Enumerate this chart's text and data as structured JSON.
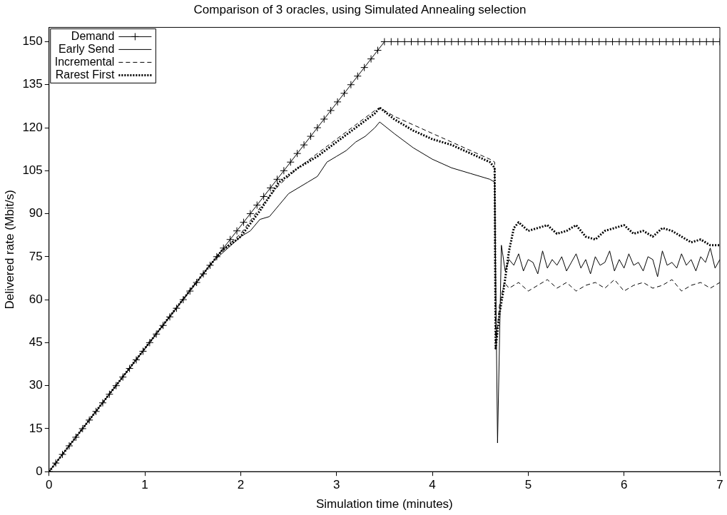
{
  "chart_data": {
    "type": "line",
    "title": "Comparison of 3 oracles, using Simulated Annealing selection",
    "xlabel": "Simulation time (minutes)",
    "ylabel": "Delivered rate (Mbit/s)",
    "xlim": [
      0,
      7
    ],
    "xticks": [
      0,
      1,
      2,
      3,
      4,
      5,
      6,
      7
    ],
    "ylim": [
      0,
      155
    ],
    "yticks": [
      0,
      15,
      30,
      45,
      60,
      75,
      90,
      105,
      120,
      135,
      150
    ],
    "grid": false,
    "legend": "top left",
    "series": [
      {
        "name": "Demand",
        "color": "#000000",
        "marker": "cross",
        "line_style": "solid",
        "x": [
          0,
          0.07,
          0.14,
          0.21,
          0.28,
          0.35,
          0.42,
          0.49,
          0.56,
          0.63,
          0.7,
          0.77,
          0.84,
          0.91,
          0.98,
          1.05,
          1.12,
          1.19,
          1.26,
          1.33,
          1.4,
          1.47,
          1.54,
          1.61,
          1.68,
          1.75,
          1.82,
          1.89,
          1.96,
          2.03,
          2.1,
          2.17,
          2.24,
          2.31,
          2.38,
          2.45,
          2.52,
          2.59,
          2.66,
          2.73,
          2.8,
          2.87,
          2.94,
          3.01,
          3.08,
          3.15,
          3.22,
          3.29,
          3.36,
          3.43,
          3.5,
          3.57,
          3.64,
          3.71,
          3.78,
          3.85,
          3.92,
          3.99,
          4.06,
          4.13,
          4.2,
          4.27,
          4.34,
          4.41,
          4.48,
          4.55,
          4.62,
          4.69,
          4.76,
          4.83,
          4.9,
          4.97,
          5.04,
          5.11,
          5.18,
          5.25,
          5.32,
          5.39,
          5.46,
          5.53,
          5.6,
          5.67,
          5.74,
          5.81,
          5.88,
          5.95,
          6.02,
          6.09,
          6.16,
          6.23,
          6.3,
          6.37,
          6.44,
          6.51,
          6.58,
          6.65,
          6.72,
          6.79,
          6.86,
          6.93,
          7.0
        ],
        "values": [
          0,
          3,
          6,
          9,
          12,
          15,
          18,
          21,
          24,
          27,
          30,
          33,
          36,
          39,
          42,
          45,
          48,
          51,
          54,
          57,
          60,
          63,
          66,
          69,
          72,
          75,
          78,
          81,
          84,
          87,
          90,
          93,
          96,
          99,
          102,
          105,
          108,
          111,
          114,
          117,
          120,
          123,
          126,
          129,
          132,
          135,
          138,
          141,
          144,
          147,
          150,
          150,
          150,
          150,
          150,
          150,
          150,
          150,
          150,
          150,
          150,
          150,
          150,
          150,
          150,
          150,
          150,
          150,
          150,
          150,
          150,
          150,
          150,
          150,
          150,
          150,
          150,
          150,
          150,
          150,
          150,
          150,
          150,
          150,
          150,
          150,
          150,
          150,
          150,
          150,
          150,
          150,
          150,
          150,
          150,
          150,
          150,
          150,
          150,
          150,
          150
        ]
      },
      {
        "name": "Early Send",
        "color": "#000000",
        "marker": "none",
        "line_style": "solid",
        "x": [
          0,
          0.5,
          1,
          1.5,
          1.7,
          1.9,
          2.0,
          2.1,
          2.2,
          2.3,
          2.4,
          2.5,
          2.6,
          2.7,
          2.8,
          2.9,
          3.0,
          3.1,
          3.2,
          3.3,
          3.4,
          3.45,
          3.6,
          3.8,
          4.0,
          4.2,
          4.4,
          4.6,
          4.65,
          4.68,
          4.72,
          4.76,
          4.8,
          4.85,
          4.9,
          4.95,
          5.0,
          5.05,
          5.1,
          5.15,
          5.2,
          5.25,
          5.3,
          5.35,
          5.4,
          5.45,
          5.5,
          5.55,
          5.6,
          5.65,
          5.7,
          5.75,
          5.8,
          5.85,
          5.9,
          5.95,
          6.0,
          6.05,
          6.1,
          6.15,
          6.2,
          6.25,
          6.3,
          6.35,
          6.4,
          6.45,
          6.5,
          6.55,
          6.6,
          6.65,
          6.7,
          6.75,
          6.8,
          6.85,
          6.9,
          6.95,
          7.0
        ],
        "values": [
          0,
          21.5,
          43,
          64.5,
          73,
          79,
          82,
          84,
          88,
          89,
          93,
          97,
          99,
          101,
          103,
          108,
          110,
          112,
          115,
          117,
          120,
          122,
          118,
          113,
          109,
          106,
          104,
          102,
          101,
          10,
          79,
          70,
          74,
          72,
          76,
          70,
          74,
          73,
          69,
          77,
          71,
          74,
          72,
          75,
          70,
          73,
          76,
          71,
          74,
          69,
          75,
          72,
          73,
          77,
          70,
          74,
          71,
          76,
          72,
          73,
          70,
          75,
          74,
          68,
          77,
          72,
          73,
          71,
          76,
          72,
          74,
          70,
          75,
          73,
          78,
          71,
          74
        ]
      },
      {
        "name": "Incremental",
        "color": "#000000",
        "marker": "none",
        "line_style": "dashed",
        "x": [
          0,
          0.5,
          1,
          1.5,
          1.8,
          2.0,
          2.2,
          2.4,
          2.6,
          2.8,
          3.0,
          3.2,
          3.4,
          3.45,
          3.6,
          3.8,
          4.0,
          4.2,
          4.4,
          4.6,
          4.65,
          4.66,
          4.7,
          4.75,
          4.8,
          4.9,
          5.0,
          5.1,
          5.2,
          5.3,
          5.4,
          5.5,
          5.6,
          5.7,
          5.8,
          5.9,
          6.0,
          6.1,
          6.2,
          6.3,
          6.4,
          6.5,
          6.6,
          6.7,
          6.8,
          6.9,
          7.0
        ],
        "values": [
          0,
          21.5,
          43,
          64.5,
          77,
          83,
          92,
          100,
          106,
          111,
          116,
          121,
          126,
          127,
          124,
          121,
          118,
          115,
          112,
          109,
          108,
          43,
          58,
          66,
          64,
          66,
          63,
          65,
          67,
          64,
          66,
          63,
          65,
          66,
          64,
          67,
          63,
          65,
          66,
          64,
          65,
          67,
          63,
          65,
          66,
          64,
          66
        ]
      },
      {
        "name": "Rarest First",
        "color": "#000000",
        "marker": "none",
        "line_style": "dotted",
        "x": [
          0,
          0.5,
          1,
          1.5,
          1.8,
          2.0,
          2.2,
          2.4,
          2.6,
          2.8,
          3.0,
          3.2,
          3.4,
          3.45,
          3.6,
          3.8,
          4.0,
          4.2,
          4.4,
          4.6,
          4.65,
          4.66,
          4.7,
          4.75,
          4.8,
          4.85,
          4.9,
          5.0,
          5.1,
          5.2,
          5.3,
          5.4,
          5.5,
          5.6,
          5.7,
          5.8,
          5.9,
          6.0,
          6.1,
          6.2,
          6.3,
          6.4,
          6.5,
          6.6,
          6.7,
          6.8,
          6.9,
          7.0
        ],
        "values": [
          0,
          21.5,
          43,
          64.5,
          77,
          82,
          91,
          101,
          106,
          110,
          115,
          120,
          125,
          127,
          123,
          119,
          116,
          114,
          111,
          108,
          106,
          43,
          55,
          65,
          77,
          85,
          87,
          84,
          85,
          86,
          83,
          84,
          86,
          82,
          81,
          84,
          85,
          86,
          83,
          84,
          82,
          85,
          84,
          82,
          80,
          81,
          79,
          79
        ]
      }
    ]
  }
}
